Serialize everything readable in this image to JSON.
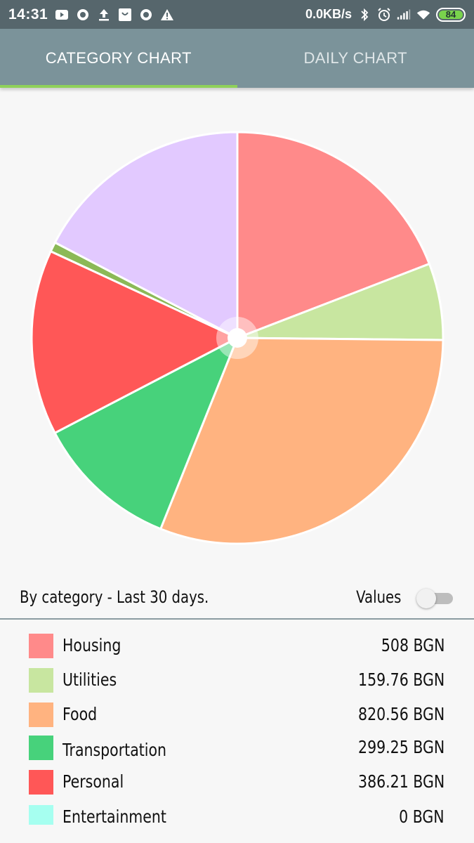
{
  "status_bar": {
    "time": "14:31",
    "net_speed": "0.0KB/s",
    "battery": "84",
    "icons": [
      "youtube-icon",
      "circle-app-icon",
      "upload-icon",
      "shopping-bag-icon",
      "circle-app-icon",
      "warning-icon",
      "bluetooth-icon",
      "alarm-icon",
      "signal-icon",
      "wifi-icon",
      "battery-icon"
    ]
  },
  "tabs": [
    {
      "label": "CATEGORY CHART",
      "active": true
    },
    {
      "label": "DAILY CHART",
      "active": false
    }
  ],
  "chart_header": {
    "title": "By category - Last 30 days.",
    "values_label": "Values",
    "values_toggle_on": false
  },
  "chart_data": {
    "type": "pie",
    "title": "By category - Last 30 days.",
    "unit": "BGN",
    "slices": [
      {
        "label": "Housing",
        "value": 508,
        "display": "508 BGN",
        "color": "#ff8a8a"
      },
      {
        "label": "Utilities",
        "value": 159.76,
        "display": "159.76 BGN",
        "color": "#c8e6a0"
      },
      {
        "label": "Food",
        "value": 820.56,
        "display": "820.56 BGN",
        "color": "#ffb380"
      },
      {
        "label": "Transportation",
        "value": 299.25,
        "display": "299.25 BGN",
        "color": "#47d27b"
      },
      {
        "label": "Personal",
        "value": 386.21,
        "display": "386.21 BGN",
        "color": "#ff5757"
      },
      {
        "label": "Entertainment",
        "value": 0,
        "display": "0 BGN",
        "color": "#a6fff0"
      },
      {
        "label": "",
        "value": 20,
        "display": "",
        "color": "#8bb957"
      },
      {
        "label": "",
        "value": 460,
        "display": "",
        "color": "#e2c9ff"
      }
    ]
  },
  "legend": [
    {
      "label": "Housing",
      "value": "508 BGN",
      "color": "#ff8a8a"
    },
    {
      "label": "Utilities",
      "value": "159.76 BGN",
      "color": "#c8e6a0"
    },
    {
      "label": "Food",
      "value": "820.56 BGN",
      "color": "#ffb380"
    },
    {
      "label": "Transportation",
      "value": "299.25 BGN",
      "color": "#47d27b"
    },
    {
      "label": "Personal",
      "value": "386.21 BGN",
      "color": "#ff5757"
    },
    {
      "label": "Entertainment",
      "value": "0 BGN",
      "color": "#a6fff0"
    }
  ]
}
